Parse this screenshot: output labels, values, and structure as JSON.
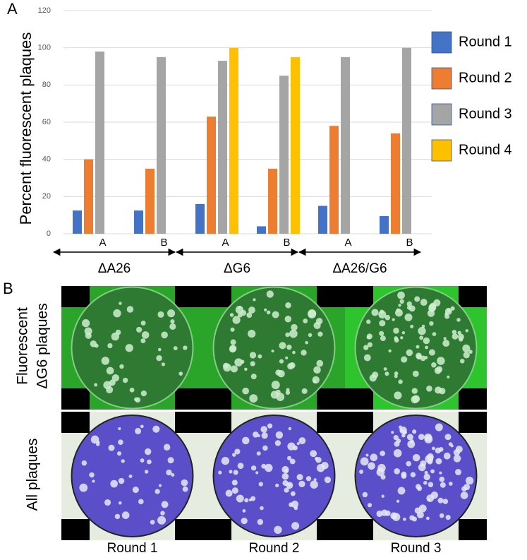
{
  "chart_data": {
    "type": "bar",
    "panel_label": "A",
    "ylabel": "Percent fluorescent plaques",
    "categories": [
      "A",
      "B",
      "A",
      "B",
      "A",
      "B"
    ],
    "groups": [
      "ΔA26",
      "ΔG6",
      "ΔA26/G6"
    ],
    "series": [
      {
        "name": "Round 1",
        "color": "#4472c4",
        "values": [
          12.5,
          12.5,
          16,
          4,
          15,
          9.5
        ]
      },
      {
        "name": "Round 2",
        "color": "#ed7d31",
        "values": [
          40,
          35,
          63,
          35,
          58,
          54
        ]
      },
      {
        "name": "Round 3",
        "color": "#a5a5a5",
        "values": [
          98,
          95,
          93,
          85,
          95,
          100
        ]
      },
      {
        "name": "Round 4",
        "color": "#ffc000",
        "values": [
          null,
          null,
          100,
          95,
          null,
          null
        ]
      }
    ],
    "ylim": [
      0,
      120
    ],
    "yticks": [
      0,
      20,
      40,
      60,
      80,
      100,
      120
    ],
    "grid": true,
    "legend": "right"
  },
  "panel_b": {
    "label": "B",
    "row_labels": [
      [
        "Fluorescent",
        "ΔG6 plaques"
      ],
      [
        "All plaques"
      ]
    ],
    "column_labels": [
      "Round 1",
      "Round 2",
      "Round 3"
    ]
  }
}
